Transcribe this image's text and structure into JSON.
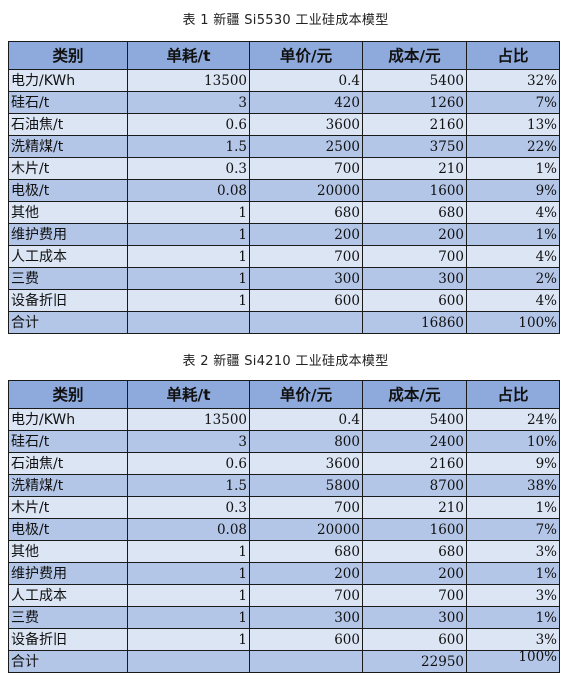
{
  "tables": [
    {
      "caption": "表 1 新疆 Si5530 工业硅成本模型",
      "headers": [
        "类别",
        "单耗/t",
        "单价/元",
        "成本/元",
        "占比"
      ],
      "rows": [
        {
          "category": "电力/KWh",
          "consumption": "13500",
          "price": "0.4",
          "cost": "5400",
          "share": "32%"
        },
        {
          "category": "硅石/t",
          "consumption": "3",
          "price": "420",
          "cost": "1260",
          "share": "7%"
        },
        {
          "category": "石油焦/t",
          "consumption": "0.6",
          "price": "3600",
          "cost": "2160",
          "share": "13%"
        },
        {
          "category": "洗精煤/t",
          "consumption": "1.5",
          "price": "2500",
          "cost": "3750",
          "share": "22%"
        },
        {
          "category": "木片/t",
          "consumption": "0.3",
          "price": "700",
          "cost": "210",
          "share": "1%"
        },
        {
          "category": "电极/t",
          "consumption": "0.08",
          "price": "20000",
          "cost": "1600",
          "share": "9%"
        },
        {
          "category": "其他",
          "consumption": "1",
          "price": "680",
          "cost": "680",
          "share": "4%"
        },
        {
          "category": "维护费用",
          "consumption": "1",
          "price": "200",
          "cost": "200",
          "share": "1%"
        },
        {
          "category": "人工成本",
          "consumption": "1",
          "price": "700",
          "cost": "700",
          "share": "4%"
        },
        {
          "category": "三费",
          "consumption": "1",
          "price": "300",
          "cost": "300",
          "share": "2%"
        },
        {
          "category": "设备折旧",
          "consumption": "1",
          "price": "600",
          "cost": "600",
          "share": "4%"
        }
      ],
      "total": {
        "category": "合计",
        "consumption": "",
        "price": "",
        "cost": "16860",
        "share": "100%"
      }
    },
    {
      "caption": "表 2 新疆 Si4210 工业硅成本模型",
      "headers": [
        "类别",
        "单耗/t",
        "单价/元",
        "成本/元",
        "占比"
      ],
      "rows": [
        {
          "category": "电力/KWh",
          "consumption": "13500",
          "price": "0.4",
          "cost": "5400",
          "share": "24%"
        },
        {
          "category": "硅石/t",
          "consumption": "3",
          "price": "800",
          "cost": "2400",
          "share": "10%"
        },
        {
          "category": "石油焦/t",
          "consumption": "0.6",
          "price": "3600",
          "cost": "2160",
          "share": "9%"
        },
        {
          "category": "洗精煤/t",
          "consumption": "1.5",
          "price": "5800",
          "cost": "8700",
          "share": "38%"
        },
        {
          "category": "木片/t",
          "consumption": "0.3",
          "price": "700",
          "cost": "210",
          "share": "1%"
        },
        {
          "category": "电极/t",
          "consumption": "0.08",
          "price": "20000",
          "cost": "1600",
          "share": "7%"
        },
        {
          "category": "其他",
          "consumption": "1",
          "price": "680",
          "cost": "680",
          "share": "3%"
        },
        {
          "category": "维护费用",
          "consumption": "1",
          "price": "200",
          "cost": "200",
          "share": "1%"
        },
        {
          "category": "人工成本",
          "consumption": "1",
          "price": "700",
          "cost": "700",
          "share": "3%"
        },
        {
          "category": "三费",
          "consumption": "1",
          "price": "300",
          "cost": "300",
          "share": "1%"
        },
        {
          "category": "设备折旧",
          "consumption": "1",
          "price": "600",
          "cost": "600",
          "share": "3%"
        }
      ],
      "total": {
        "category": "合计",
        "consumption": "",
        "price": "",
        "cost": "22950",
        "share": "100%"
      }
    }
  ]
}
